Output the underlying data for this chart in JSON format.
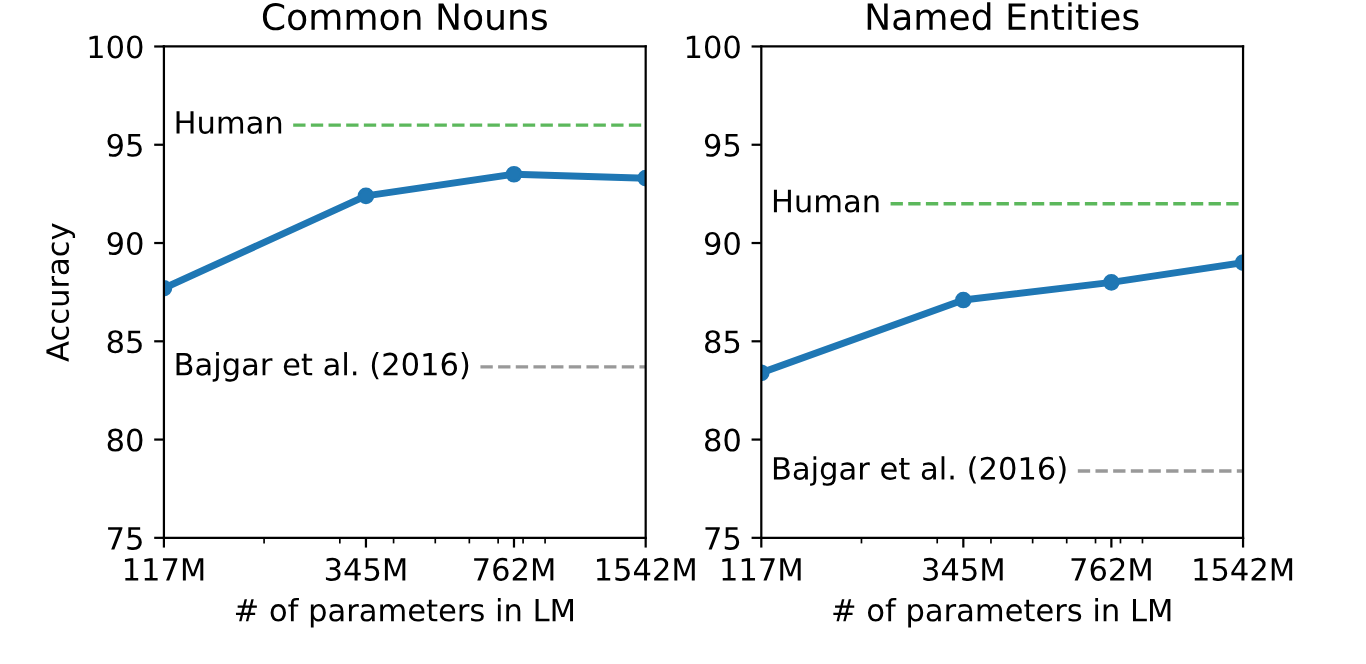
{
  "chart_data": [
    {
      "type": "line",
      "title": "Common Nouns",
      "xlabel": "# of parameters in LM",
      "ylabel": "Accuracy",
      "log": "x",
      "x": [
        117,
        345,
        762,
        1542
      ],
      "series": [
        {
          "color": "#1f77b4",
          "values": [
            87.7,
            92.4,
            93.5,
            93.3
          ]
        }
      ],
      "marker": "circle",
      "line_style": "solid",
      "xlim": [
        117,
        1542
      ],
      "xticks": [
        {
          "value": 117,
          "label": "117M"
        },
        {
          "value": 345,
          "label": "345M"
        },
        {
          "value": 762,
          "label": "762M"
        },
        {
          "value": 1542,
          "label": "1542M"
        }
      ],
      "ylim": [
        75,
        100
      ],
      "yticks": [
        75,
        80,
        85,
        90,
        95,
        100
      ],
      "ref_lines": [
        {
          "axis": "y",
          "value": 96,
          "label": "Human",
          "color": "#5cb85c",
          "line_style": "dashed"
        },
        {
          "axis": "y",
          "value": 83.7,
          "label": "Bajgar et al. (2016)",
          "color": "#999999",
          "line_style": "dashed"
        }
      ],
      "grid": false,
      "legend": false
    },
    {
      "type": "line",
      "title": "Named Entities",
      "xlabel": "# of parameters in LM",
      "log": "x",
      "x": [
        117,
        345,
        762,
        1542
      ],
      "series": [
        {
          "color": "#1f77b4",
          "values": [
            83.4,
            87.1,
            88.0,
            89.0
          ]
        }
      ],
      "marker": "circle",
      "line_style": "solid",
      "xlim": [
        117,
        1542
      ],
      "xticks": [
        {
          "value": 117,
          "label": "117M"
        },
        {
          "value": 345,
          "label": "345M"
        },
        {
          "value": 762,
          "label": "762M"
        },
        {
          "value": 1542,
          "label": "1542M"
        }
      ],
      "ylim": [
        75,
        100
      ],
      "yticks": [
        75,
        80,
        85,
        90,
        95,
        100
      ],
      "ref_lines": [
        {
          "axis": "y",
          "value": 92,
          "label": "Human",
          "color": "#5cb85c",
          "line_style": "dashed"
        },
        {
          "axis": "y",
          "value": 78.4,
          "label": "Bajgar et al. (2016)",
          "color": "#999999",
          "line_style": "dashed"
        }
      ],
      "grid": false,
      "legend": false
    }
  ]
}
